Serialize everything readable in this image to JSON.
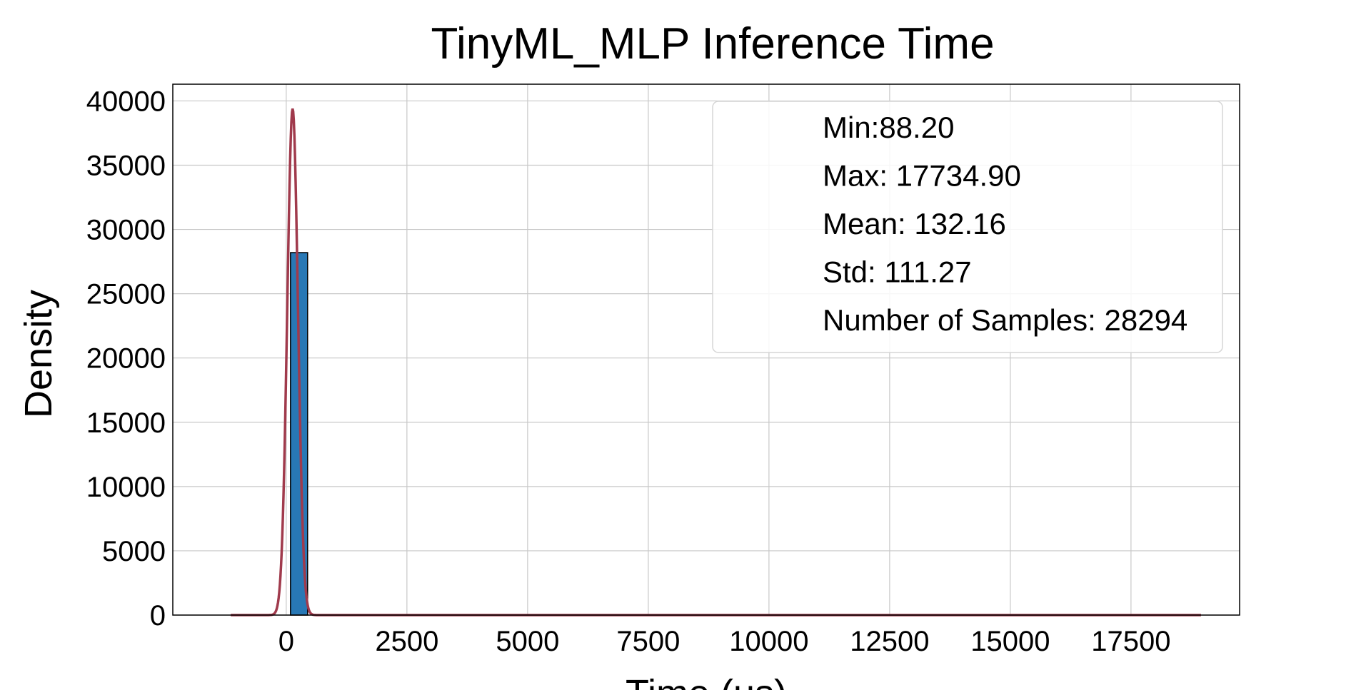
{
  "chart_data": {
    "type": "bar",
    "title": "TinyML_MLP Inference Time",
    "xlabel": "Time (us)",
    "ylabel": "Density",
    "xlim": [
      -2350,
      19750
    ],
    "ylim": [
      0,
      41300
    ],
    "xticks": [
      0,
      2500,
      5000,
      7500,
      10000,
      12500,
      15000,
      17500
    ],
    "yticks": [
      0,
      5000,
      10000,
      15000,
      20000,
      25000,
      30000,
      35000,
      40000
    ],
    "grid": true,
    "bars": [
      {
        "x0": 88.2,
        "x1": 442.5,
        "value": 28200
      }
    ],
    "fit_curve": {
      "type": "normal",
      "mean": 132.16,
      "std": 111.27,
      "peak": 39400,
      "x_range": [
        -1150,
        18950
      ],
      "color": "#a03a4c"
    },
    "bar_color": "#2878b5",
    "stats_box": {
      "placement": "top-right",
      "lines": [
        "Min:88.20",
        "Max: 17734.90",
        "Mean: 132.16",
        "Std: 111.27",
        "Number of Samples: 28294"
      ]
    }
  }
}
